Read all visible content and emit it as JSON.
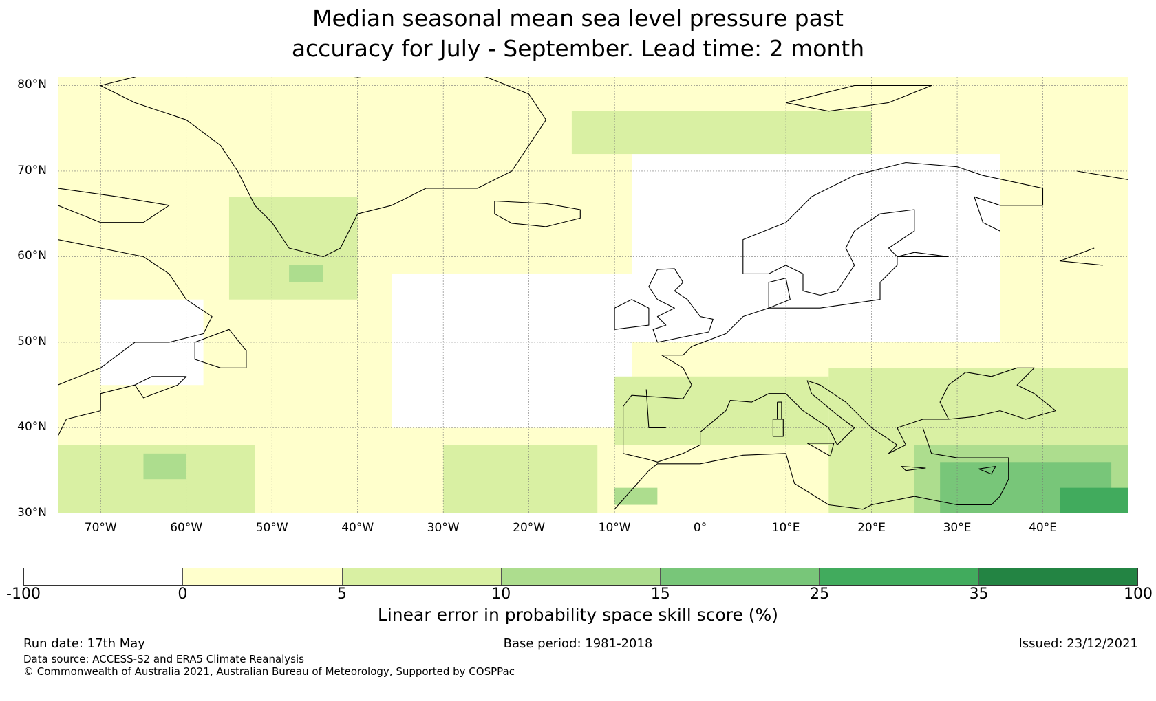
{
  "title_line1": "Median seasonal mean sea level pressure past",
  "title_line2": "accuracy for July - September. Lead time: 2 month",
  "map": {
    "lon_range": [
      -75,
      50
    ],
    "lat_range": [
      30,
      81
    ],
    "lat_labels": [
      {
        "lat": 80,
        "text": "80°N"
      },
      {
        "lat": 70,
        "text": "70°N"
      },
      {
        "lat": 60,
        "text": "60°N"
      },
      {
        "lat": 50,
        "text": "50°N"
      },
      {
        "lat": 40,
        "text": "40°N"
      },
      {
        "lat": 30,
        "text": "30°N"
      }
    ],
    "lon_labels": [
      {
        "lon": -70,
        "text": "70°W"
      },
      {
        "lon": -60,
        "text": "60°W"
      },
      {
        "lon": -50,
        "text": "50°W"
      },
      {
        "lon": -40,
        "text": "40°W"
      },
      {
        "lon": -30,
        "text": "30°W"
      },
      {
        "lon": -20,
        "text": "20°W"
      },
      {
        "lon": -10,
        "text": "10°W"
      },
      {
        "lon": 0,
        "text": "0°"
      },
      {
        "lon": 10,
        "text": "10°E"
      },
      {
        "lon": 20,
        "text": "20°E"
      },
      {
        "lon": 30,
        "text": "30°E"
      },
      {
        "lon": 40,
        "text": "40°E"
      }
    ],
    "skill_regions": [
      {
        "level": 1,
        "lon": [
          -75,
          50
        ],
        "lat": [
          30,
          81
        ]
      },
      {
        "level": 0,
        "lon": [
          -36,
          -8
        ],
        "lat": [
          40,
          58
        ]
      },
      {
        "level": 0,
        "lon": [
          -8,
          35
        ],
        "lat": [
          50,
          72
        ]
      },
      {
        "level": 0,
        "lon": [
          -70,
          -58
        ],
        "lat": [
          45,
          55
        ]
      },
      {
        "level": 2,
        "lon": [
          -55,
          -40
        ],
        "lat": [
          55,
          67
        ]
      },
      {
        "level": 2,
        "lon": [
          -15,
          20
        ],
        "lat": [
          72,
          77
        ]
      },
      {
        "level": 2,
        "lon": [
          -75,
          -52
        ],
        "lat": [
          30,
          38
        ]
      },
      {
        "level": 2,
        "lon": [
          -30,
          -12
        ],
        "lat": [
          30,
          38
        ]
      },
      {
        "level": 2,
        "lon": [
          -10,
          15
        ],
        "lat": [
          38,
          46
        ]
      },
      {
        "level": 2,
        "lon": [
          15,
          50
        ],
        "lat": [
          30,
          47
        ]
      },
      {
        "level": 3,
        "lon": [
          -65,
          -60
        ],
        "lat": [
          34,
          37
        ]
      },
      {
        "level": 3,
        "lon": [
          -48,
          -44
        ],
        "lat": [
          57,
          59
        ]
      },
      {
        "level": 3,
        "lon": [
          -10,
          -5
        ],
        "lat": [
          31,
          33
        ]
      },
      {
        "level": 3,
        "lon": [
          25,
          50
        ],
        "lat": [
          30,
          38
        ]
      },
      {
        "level": 4,
        "lon": [
          28,
          48
        ],
        "lat": [
          30,
          36
        ]
      },
      {
        "level": 5,
        "lon": [
          42,
          50
        ],
        "lat": [
          30,
          33
        ]
      }
    ],
    "coastlines": [
      [
        [
          -62,
          82
        ],
        [
          -50,
          82
        ],
        [
          -40,
          81
        ],
        [
          -30,
          82
        ],
        [
          -25,
          81
        ],
        [
          -20,
          79
        ],
        [
          -18,
          76
        ],
        [
          -20,
          73
        ],
        [
          -22,
          70
        ],
        [
          -26,
          68
        ],
        [
          -32,
          68
        ],
        [
          -36,
          66
        ],
        [
          -40,
          65
        ],
        [
          -42,
          61
        ],
        [
          -44,
          60
        ],
        [
          -48,
          61
        ],
        [
          -50,
          64
        ],
        [
          -52,
          66
        ],
        [
          -54,
          70
        ],
        [
          -56,
          73
        ],
        [
          -60,
          76
        ],
        [
          -66,
          78
        ],
        [
          -70,
          80
        ],
        [
          -62,
          82
        ]
      ],
      [
        [
          -24,
          66.5
        ],
        [
          -18,
          66.2
        ],
        [
          -14,
          65.5
        ],
        [
          -14,
          64.5
        ],
        [
          -18,
          63.5
        ],
        [
          -22,
          63.9
        ],
        [
          -24,
          65
        ],
        [
          -24,
          66.5
        ]
      ],
      [
        [
          -75,
          68
        ],
        [
          -68,
          67
        ],
        [
          -62,
          66
        ],
        [
          -65,
          64
        ],
        [
          -70,
          64
        ],
        [
          -75,
          66
        ]
      ],
      [
        [
          -75,
          62
        ],
        [
          -70,
          61
        ],
        [
          -65,
          60
        ],
        [
          -62,
          58
        ],
        [
          -60,
          55
        ],
        [
          -57,
          53
        ],
        [
          -58,
          51
        ],
        [
          -62,
          50
        ],
        [
          -66,
          50
        ],
        [
          -70,
          47
        ],
        [
          -75,
          45
        ]
      ],
      [
        [
          -59,
          50
        ],
        [
          -55,
          51.5
        ],
        [
          -53,
          49
        ],
        [
          -53,
          47
        ],
        [
          -56,
          47
        ],
        [
          -59,
          48
        ],
        [
          -59,
          50
        ]
      ],
      [
        [
          -66,
          45
        ],
        [
          -64,
          46
        ],
        [
          -60,
          46
        ],
        [
          -61,
          45
        ],
        [
          -65,
          43.5
        ],
        [
          -66,
          45
        ]
      ],
      [
        [
          -75,
          39
        ],
        [
          -74,
          41
        ],
        [
          -70,
          42
        ],
        [
          -70,
          44
        ],
        [
          -66,
          45
        ]
      ],
      [
        [
          -5,
          58.5
        ],
        [
          -3,
          58.6
        ],
        [
          -2,
          57
        ],
        [
          -3,
          56
        ],
        [
          -1.5,
          55
        ],
        [
          0,
          53
        ],
        [
          1.5,
          52.7
        ],
        [
          1,
          51.2
        ],
        [
          -5,
          50
        ],
        [
          -5.5,
          51.5
        ],
        [
          -4,
          52
        ],
        [
          -5,
          53
        ],
        [
          -3,
          54
        ],
        [
          -5,
          55
        ],
        [
          -6,
          56.5
        ],
        [
          -5,
          58.5
        ]
      ],
      [
        [
          -10,
          51.5
        ],
        [
          -6,
          52
        ],
        [
          -6,
          54
        ],
        [
          -8,
          55
        ],
        [
          -10,
          54
        ],
        [
          -10,
          51.5
        ]
      ],
      [
        [
          5,
          58
        ],
        [
          5,
          62
        ],
        [
          10,
          64
        ],
        [
          13,
          67
        ],
        [
          18,
          69.5
        ],
        [
          24,
          71
        ],
        [
          30,
          70.5
        ],
        [
          33,
          69.5
        ],
        [
          40,
          68
        ],
        [
          40,
          66
        ],
        [
          35,
          66
        ],
        [
          32,
          67
        ],
        [
          33,
          64
        ],
        [
          35,
          63
        ]
      ],
      [
        [
          5,
          58
        ],
        [
          8,
          58
        ],
        [
          10,
          59
        ],
        [
          12,
          58
        ],
        [
          12,
          56
        ],
        [
          14,
          55.5
        ],
        [
          16,
          56
        ],
        [
          18,
          59
        ],
        [
          17,
          61
        ],
        [
          18,
          63
        ],
        [
          21,
          65
        ],
        [
          25,
          65.5
        ],
        [
          25,
          63
        ],
        [
          22,
          61
        ],
        [
          23,
          60
        ],
        [
          29,
          60
        ]
      ],
      [
        [
          8,
          54
        ],
        [
          8,
          57
        ],
        [
          10,
          57.5
        ],
        [
          10.5,
          55
        ],
        [
          8,
          54
        ]
      ],
      [
        [
          29,
          60
        ],
        [
          25,
          60.5
        ],
        [
          23,
          60
        ],
        [
          23,
          59
        ],
        [
          21,
          57
        ],
        [
          21,
          55
        ],
        [
          14,
          54
        ],
        [
          10,
          54
        ],
        [
          8,
          54
        ],
        [
          5,
          53
        ],
        [
          3,
          51
        ],
        [
          -1,
          49.5
        ],
        [
          -2,
          48.5
        ],
        [
          -4.5,
          48.5
        ],
        [
          -2,
          47
        ],
        [
          -1,
          45
        ],
        [
          -2,
          43.4
        ],
        [
          -8,
          43.8
        ],
        [
          -9,
          42.5
        ],
        [
          -9,
          39
        ],
        [
          -9,
          37
        ],
        [
          -6,
          36.3
        ],
        [
          -5,
          36
        ],
        [
          -2,
          37
        ],
        [
          0,
          38
        ],
        [
          0,
          39.5
        ],
        [
          3,
          42
        ],
        [
          3.5,
          43.2
        ],
        [
          6,
          43
        ],
        [
          8,
          44
        ],
        [
          10,
          44
        ],
        [
          12,
          42
        ],
        [
          15,
          40
        ],
        [
          16,
          38
        ],
        [
          18,
          40
        ],
        [
          16,
          41.5
        ],
        [
          13,
          44
        ],
        [
          12.5,
          45.5
        ],
        [
          14,
          45
        ],
        [
          17,
          43
        ],
        [
          20,
          40
        ],
        [
          23,
          38
        ],
        [
          22,
          37
        ],
        [
          24,
          38
        ],
        [
          23,
          40
        ],
        [
          26,
          41
        ],
        [
          29,
          41
        ]
      ],
      [
        [
          29,
          41
        ],
        [
          28,
          43
        ],
        [
          29,
          45
        ],
        [
          31,
          46.5
        ],
        [
          34,
          46
        ],
        [
          37,
          47
        ],
        [
          39,
          47
        ],
        [
          37,
          45
        ],
        [
          39,
          44
        ],
        [
          41.5,
          42
        ],
        [
          38,
          41
        ],
        [
          35,
          42
        ],
        [
          32,
          41.3
        ],
        [
          29,
          41
        ]
      ],
      [
        [
          26,
          40
        ],
        [
          27,
          37
        ],
        [
          30,
          36.5
        ],
        [
          36,
          36.5
        ],
        [
          36,
          34
        ],
        [
          35,
          32
        ],
        [
          34,
          31
        ],
        [
          32,
          31
        ],
        [
          30,
          31
        ],
        [
          25,
          32
        ],
        [
          20,
          31
        ],
        [
          19,
          30.5
        ],
        [
          15,
          31
        ],
        [
          11,
          33.5
        ],
        [
          10,
          37
        ],
        [
          5,
          36.8
        ],
        [
          0,
          35.8
        ],
        [
          -5,
          35.8
        ],
        [
          -6,
          35
        ],
        [
          -10,
          30.5
        ]
      ],
      [
        [
          -6.3,
          44.5
        ],
        [
          -6,
          40
        ],
        [
          -4,
          40
        ]
      ],
      [
        [
          9,
          43
        ],
        [
          9.5,
          43
        ],
        [
          9.5,
          41
        ],
        [
          9,
          41
        ],
        [
          9,
          43
        ]
      ],
      [
        [
          8.5,
          41
        ],
        [
          9.7,
          41
        ],
        [
          9.7,
          39
        ],
        [
          8.5,
          39
        ],
        [
          8.5,
          41
        ]
      ],
      [
        [
          12.5,
          38.2
        ],
        [
          15.6,
          38.2
        ],
        [
          15.2,
          36.7
        ],
        [
          12.5,
          38.2
        ]
      ],
      [
        [
          32.5,
          35.2
        ],
        [
          34.5,
          35.5
        ],
        [
          34,
          34.6
        ],
        [
          32.5,
          35.2
        ]
      ],
      [
        [
          23.5,
          35.5
        ],
        [
          26.3,
          35.3
        ],
        [
          24,
          35
        ],
        [
          23.5,
          35.5
        ]
      ],
      [
        [
          10,
          78
        ],
        [
          18,
          80
        ],
        [
          27,
          80
        ],
        [
          22,
          78
        ],
        [
          15,
          77
        ],
        [
          10,
          78
        ]
      ],
      [
        [
          44,
          70
        ],
        [
          50,
          69
        ]
      ],
      [
        [
          47,
          59
        ],
        [
          42,
          59.5
        ],
        [
          46,
          61
        ]
      ]
    ]
  },
  "colorbar": {
    "colors": [
      "#ffffff",
      "#ffffcc",
      "#d9f0a3",
      "#addd8e",
      "#78c679",
      "#41ab5d",
      "#238443"
    ],
    "ticks": [
      "-100",
      "0",
      "5",
      "10",
      "15",
      "25",
      "35",
      "100"
    ],
    "label": "Linear error in probability space skill score (%)"
  },
  "footer": {
    "run_date": "Run date: 17th May",
    "base_period": "Base period: 1981-2018",
    "issued": "Issued: 23/12/2021",
    "data_source": "Data source: ACCESS-S2 and ERA5 Climate Reanalysis",
    "copyright": "© Commonwealth of Australia 2021, Australian Bureau of Meteorology, Supported by COSPPac"
  }
}
